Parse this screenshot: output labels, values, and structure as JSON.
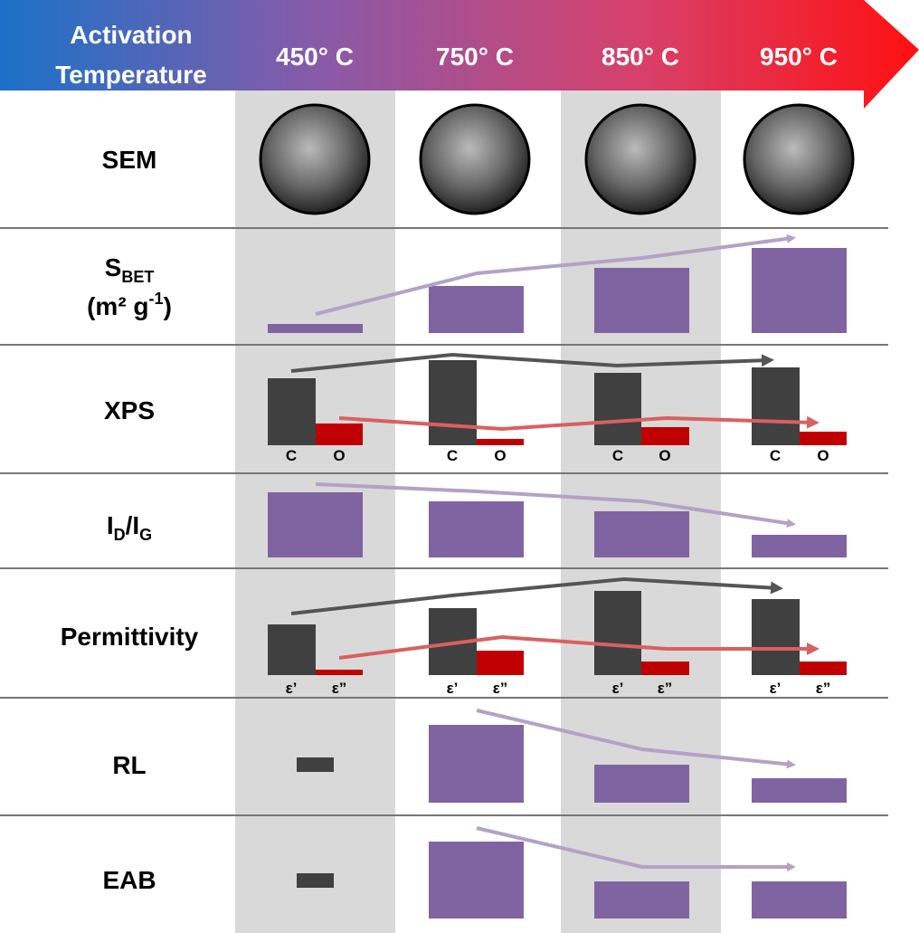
{
  "header": {
    "title_lines": [
      "Activation",
      "Temperature"
    ],
    "columns": [
      "450° C",
      "750° C",
      "850° C",
      "950° C"
    ]
  },
  "rows": {
    "sem": {
      "label": "SEM"
    },
    "sbet": {
      "label": "S",
      "label_sub": "BET",
      "unit": "(m² g",
      "unit_sup": "-1",
      "unit_end": ")"
    },
    "xps": {
      "label": "XPS",
      "bar_labels": [
        "C",
        "O"
      ]
    },
    "idig": {
      "label_1": "I",
      "label_1_sub": "D",
      "label_sep": "/I",
      "label_2_sub": "G"
    },
    "permittivity": {
      "label": "Permittivity",
      "bar_labels": [
        "ε’",
        "ε”"
      ]
    },
    "rl": {
      "label": "RL"
    },
    "eab": {
      "label": "EAB"
    }
  }
}
